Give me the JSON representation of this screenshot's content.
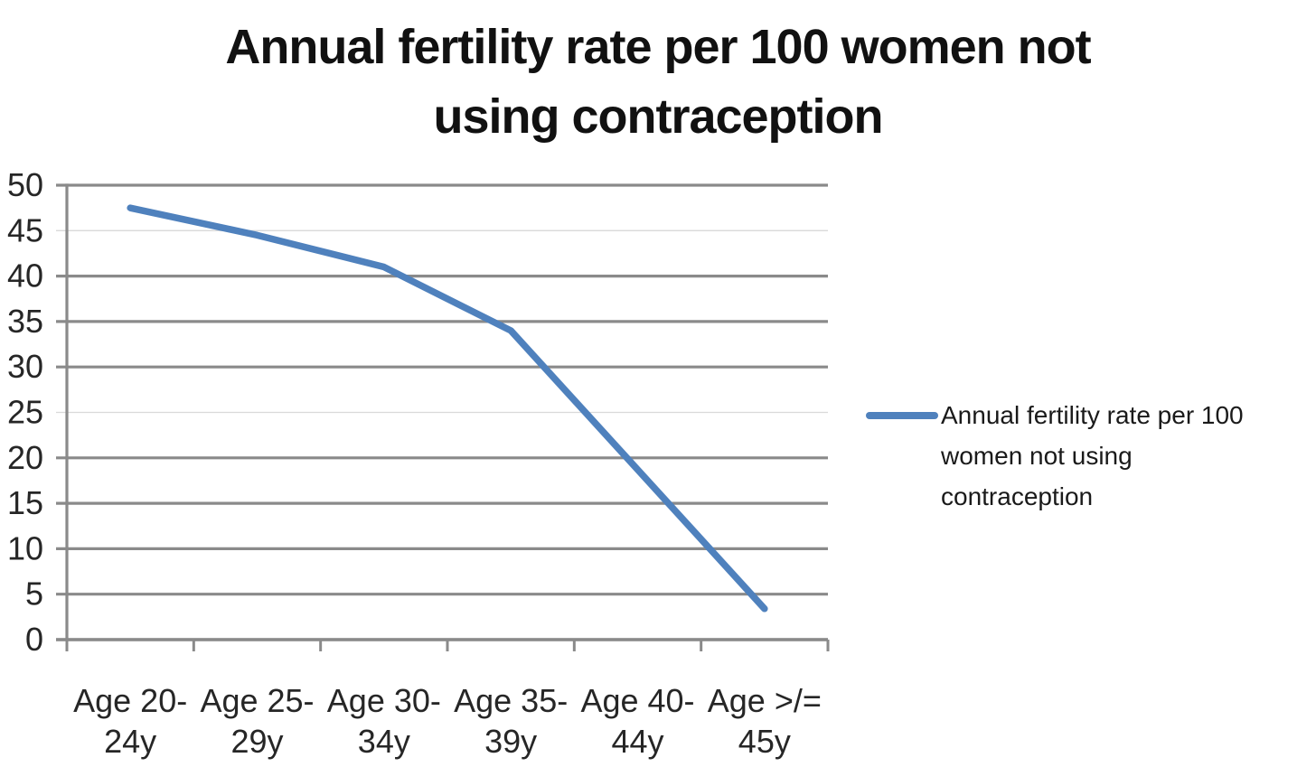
{
  "title": {
    "lines": [
      "Annual fertility rate per 100 women not",
      "using contraception"
    ],
    "full": "Annual fertility rate per 100 women not using contraception"
  },
  "legend": {
    "lines": [
      "Annual fertility rate per 100",
      "women not using",
      "contraception"
    ],
    "swatch_color": "#4f81bd"
  },
  "chart_data": {
    "type": "line",
    "title": "Annual fertility rate per 100 women not using contraception",
    "categories": [
      "Age 20-24y",
      "Age 25-29y",
      "Age 30-34y",
      "Age 35-39y",
      "Age 40-44y",
      "Age >/= 45y"
    ],
    "category_tick_lines": [
      [
        "Age 20-",
        "24y"
      ],
      [
        "Age 25-",
        "29y"
      ],
      [
        "Age 30-",
        "34y"
      ],
      [
        "Age 35-",
        "39y"
      ],
      [
        "Age 40-",
        "44y"
      ],
      [
        "Age >/=",
        "45y"
      ]
    ],
    "series": [
      {
        "name": "Annual fertility rate per 100 women not using contraception",
        "color": "#4f81bd",
        "values": [
          47.5,
          44.5,
          41,
          34,
          18.7,
          3.4
        ]
      }
    ],
    "xlabel": "",
    "ylabel": "",
    "ylim": [
      0,
      50
    ],
    "y_ticks": [
      50,
      45,
      40,
      35,
      30,
      25,
      20,
      15,
      10,
      5,
      0
    ],
    "light_gridlines": [
      45,
      25
    ],
    "grid": true,
    "legend_position": "right",
    "colors": {
      "grid_dark": "#8a8a8a",
      "grid_light": "#d9d9d9",
      "axis": "#8a8a8a",
      "text": "#262626",
      "title": "#111111"
    }
  }
}
